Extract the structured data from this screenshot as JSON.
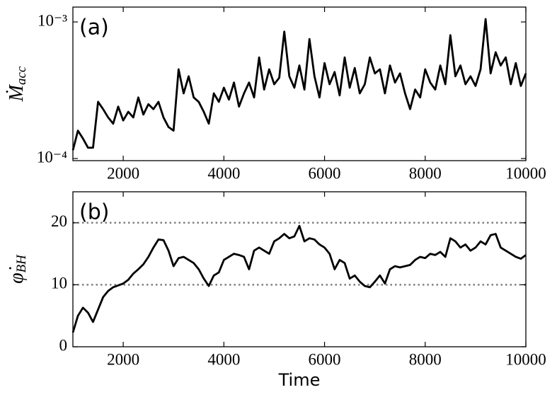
{
  "chart_data": [
    {
      "type": "line",
      "panel_label": "(a)",
      "ylabel": {
        "main": "Ṁ",
        "sub": "acc"
      },
      "yscale": "log",
      "color": "#000000",
      "xlim": [
        1000,
        10000
      ],
      "xticks": [
        2000,
        4000,
        6000,
        8000,
        10000
      ],
      "ylim": [
        9.65e-05,
        0.001285
      ],
      "yticks": [
        {
          "value": 0.0001,
          "label": "10⁻⁴"
        },
        {
          "value": 0.001,
          "label": "10⁻³"
        }
      ],
      "x": [
        1000,
        1100,
        1200,
        1300,
        1400,
        1500,
        1600,
        1700,
        1800,
        1900,
        2000,
        2100,
        2200,
        2300,
        2400,
        2500,
        2600,
        2700,
        2800,
        2900,
        3000,
        3100,
        3200,
        3300,
        3400,
        3500,
        3600,
        3700,
        3800,
        3900,
        4000,
        4100,
        4200,
        4300,
        4400,
        4500,
        4600,
        4700,
        4800,
        4900,
        5000,
        5100,
        5200,
        5300,
        5400,
        5500,
        5600,
        5700,
        5800,
        5900,
        6000,
        6100,
        6200,
        6300,
        6400,
        6500,
        6600,
        6700,
        6800,
        6900,
        7000,
        7100,
        7200,
        7300,
        7400,
        7500,
        7600,
        7700,
        7800,
        7900,
        8000,
        8100,
        8200,
        8300,
        8400,
        8500,
        8600,
        8700,
        8800,
        8900,
        9000,
        9100,
        9200,
        9300,
        9400,
        9500,
        9600,
        9700,
        9800,
        9900,
        10000
      ],
      "values": [
        0.000115,
        0.00016,
        0.00014,
        0.00012,
        0.00012,
        0.00026,
        0.00023,
        0.0002,
        0.00018,
        0.00024,
        0.00019,
        0.00022,
        0.0002,
        0.00028,
        0.00021,
        0.00025,
        0.00023,
        0.00026,
        0.0002,
        0.00017,
        0.00016,
        0.00045,
        0.0003,
        0.0004,
        0.00028,
        0.00026,
        0.00022,
        0.00018,
        0.0003,
        0.00026,
        0.00033,
        0.00027,
        0.00036,
        0.00024,
        0.0003,
        0.00036,
        0.00028,
        0.00055,
        0.00032,
        0.00045,
        0.00035,
        0.00039,
        0.00085,
        0.0004,
        0.00033,
        0.00048,
        0.00032,
        0.00075,
        0.0004,
        0.00028,
        0.0005,
        0.00035,
        0.00043,
        0.00029,
        0.00055,
        0.00033,
        0.00046,
        0.0003,
        0.00035,
        0.00055,
        0.00042,
        0.00045,
        0.0003,
        0.00048,
        0.00036,
        0.00042,
        0.0003,
        0.00023,
        0.00032,
        0.00028,
        0.00045,
        0.00036,
        0.00032,
        0.00048,
        0.00035,
        0.0008,
        0.0004,
        0.00048,
        0.00035,
        0.0004,
        0.00034,
        0.00045,
        0.00105,
        0.00042,
        0.0006,
        0.00048,
        0.00055,
        0.00035,
        0.0005,
        0.00034,
        0.00042
      ]
    },
    {
      "type": "line",
      "panel_label": "(b)",
      "ylabel": {
        "main": "φ̇",
        "sub": "BH"
      },
      "xlabel": "Time",
      "color": "#000000",
      "xlim": [
        1000,
        10000
      ],
      "xticks": [
        2000,
        4000,
        6000,
        8000,
        10000
      ],
      "ylim": [
        0,
        25
      ],
      "yticks": [
        0,
        10,
        20
      ],
      "hlines": [
        10,
        20
      ],
      "hline_color": "#808080",
      "x": [
        1000,
        1100,
        1200,
        1300,
        1400,
        1500,
        1600,
        1700,
        1800,
        1900,
        2000,
        2100,
        2200,
        2300,
        2400,
        2500,
        2600,
        2700,
        2800,
        2900,
        3000,
        3100,
        3200,
        3300,
        3400,
        3500,
        3600,
        3700,
        3800,
        3900,
        4000,
        4100,
        4200,
        4300,
        4400,
        4500,
        4600,
        4700,
        4800,
        4900,
        5000,
        5100,
        5200,
        5300,
        5400,
        5500,
        5600,
        5700,
        5800,
        5900,
        6000,
        6100,
        6200,
        6300,
        6400,
        6500,
        6600,
        6700,
        6800,
        6900,
        7000,
        7100,
        7200,
        7300,
        7400,
        7500,
        7600,
        7700,
        7800,
        7900,
        8000,
        8100,
        8200,
        8300,
        8400,
        8500,
        8600,
        8700,
        8800,
        8900,
        9000,
        9100,
        9200,
        9300,
        9400,
        9500,
        9600,
        9700,
        9800,
        9900,
        10000
      ],
      "values": [
        2.3,
        5,
        6.3,
        5.5,
        4,
        6,
        8,
        9,
        9.6,
        9.9,
        10.2,
        10.8,
        11.8,
        12.5,
        13.3,
        14.5,
        16,
        17.3,
        17.2,
        15.5,
        13,
        14.3,
        14.5,
        14,
        13.5,
        12.5,
        11,
        9.8,
        11.5,
        12,
        14,
        14.5,
        15,
        14.8,
        14.5,
        12.5,
        15.5,
        16,
        15.5,
        15,
        17,
        17.5,
        18.2,
        17.5,
        17.8,
        19.5,
        17,
        17.5,
        17.3,
        16.5,
        16,
        15,
        12.5,
        14,
        13.5,
        11,
        11.5,
        10.5,
        9.8,
        9.6,
        10.5,
        11.5,
        10.2,
        12.5,
        13,
        12.8,
        13,
        13.2,
        14,
        14.5,
        14.3,
        15,
        14.8,
        15.3,
        14.5,
        17.5,
        17,
        16,
        16.5,
        15.5,
        16,
        17,
        16.5,
        18,
        18.2,
        16,
        15.5,
        15,
        14.5,
        14.2,
        14.8
      ]
    }
  ]
}
